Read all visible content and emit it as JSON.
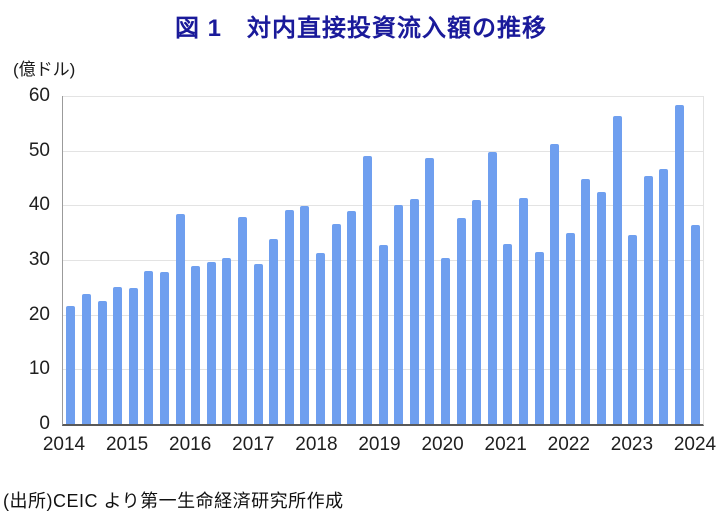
{
  "header": {
    "title": "図 1　対内直接投資流入額の推移"
  },
  "chart_data": {
    "type": "bar",
    "title": "図 1　対内直接投資流入額の推移",
    "unit_label": "(億ドル)",
    "ylabel": "(億ドル)",
    "ylim": [
      0,
      60
    ],
    "yticks": [
      0,
      10,
      20,
      30,
      40,
      50,
      60
    ],
    "grid": "horizontal",
    "legend": "none",
    "x_year_labels": [
      "2014",
      "2015",
      "2016",
      "2017",
      "2018",
      "2019",
      "2020",
      "2021",
      "2022",
      "2023",
      "2024"
    ],
    "x": [
      "2014Q1",
      "2014Q2",
      "2014Q3",
      "2014Q4",
      "2015Q1",
      "2015Q2",
      "2015Q3",
      "2015Q4",
      "2016Q1",
      "2016Q2",
      "2016Q3",
      "2016Q4",
      "2017Q1",
      "2017Q2",
      "2017Q3",
      "2017Q4",
      "2018Q1",
      "2018Q2",
      "2018Q3",
      "2018Q4",
      "2019Q1",
      "2019Q2",
      "2019Q3",
      "2019Q4",
      "2020Q1",
      "2020Q2",
      "2020Q3",
      "2020Q4",
      "2021Q1",
      "2021Q2",
      "2021Q3",
      "2021Q4",
      "2022Q1",
      "2022Q2",
      "2022Q3",
      "2022Q4",
      "2023Q1",
      "2023Q2",
      "2023Q3",
      "2023Q4",
      "2024Q1"
    ],
    "series": [
      {
        "name": "対内直接投資流入額",
        "values": [
          21.5,
          23.8,
          22.5,
          25.1,
          24.8,
          27.9,
          27.8,
          38.5,
          28.9,
          29.6,
          30.4,
          37.8,
          29.2,
          33.8,
          39.1,
          39.9,
          31.3,
          36.5,
          39.0,
          49.0,
          32.7,
          40.0,
          41.2,
          48.7,
          30.4,
          37.6,
          41.0,
          49.8,
          32.9,
          41.4,
          31.5,
          51.3,
          35.0,
          44.9,
          42.4,
          56.3,
          34.5,
          45.3,
          46.7,
          58.3,
          36.4
        ]
      }
    ],
    "colors": {
      "bar": "#6f9fef",
      "title": "#1a1a9a",
      "gridline": "#e3e3e3",
      "axis_line": "#595959",
      "tick_text": "#1f1f1f"
    }
  },
  "footer": {
    "source": "(出所)CEIC より第一生命経済研究所作成"
  }
}
